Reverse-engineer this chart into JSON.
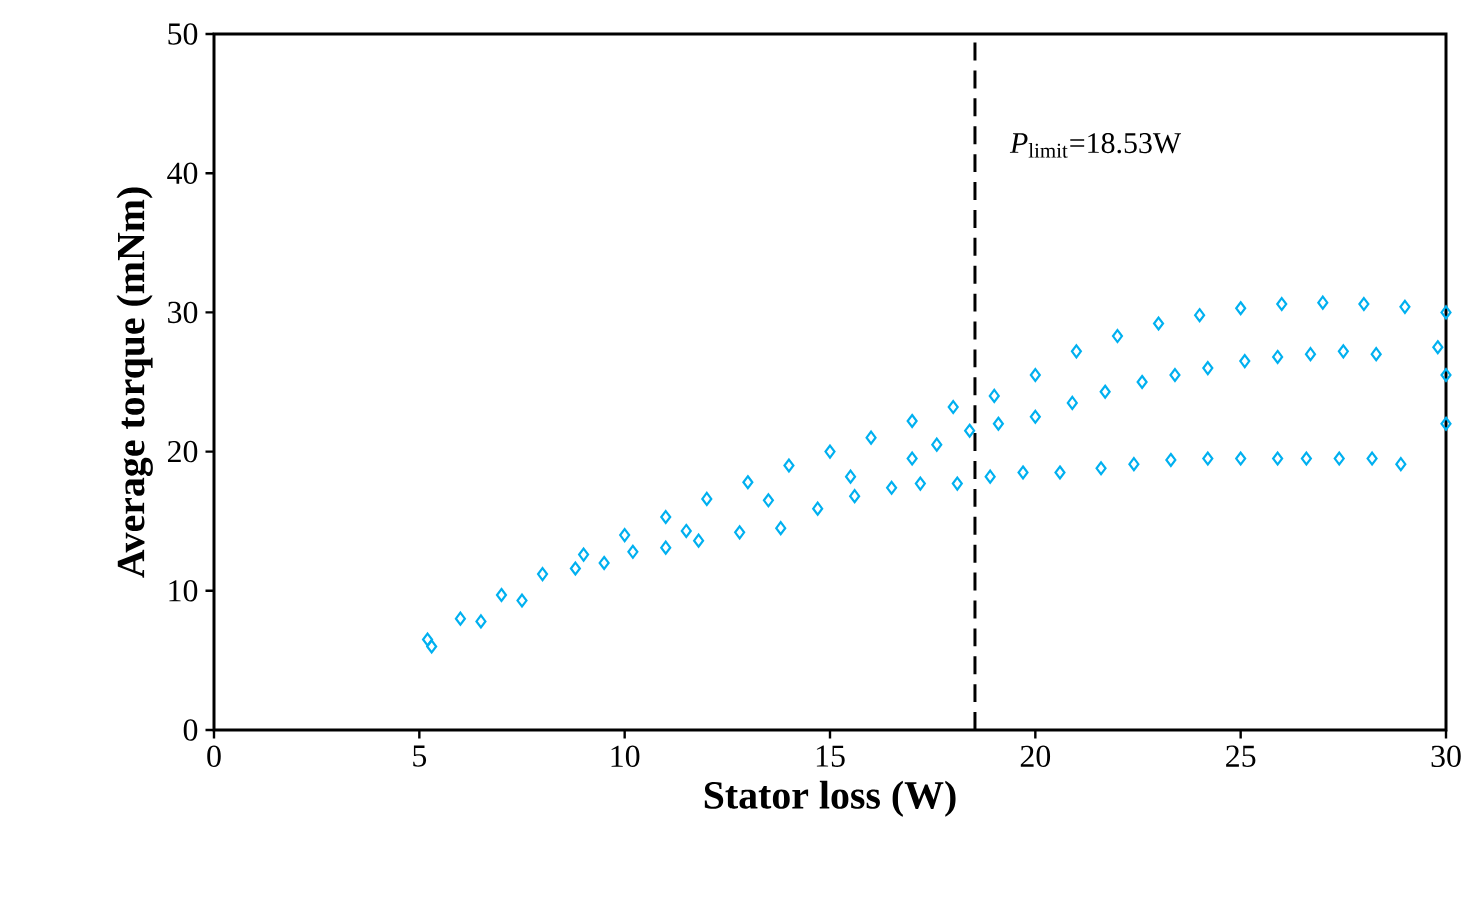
{
  "chart_data": {
    "type": "scatter",
    "xlabel": "Stator loss (W)",
    "ylabel": "Average torque (mNm)",
    "xlim": [
      0,
      30
    ],
    "ylim": [
      0,
      50
    ],
    "xticks": [
      0,
      5,
      10,
      15,
      20,
      25,
      30
    ],
    "yticks": [
      0,
      10,
      20,
      30,
      40,
      50
    ],
    "marker": "diamond",
    "grid": false,
    "ref_lines": [
      {
        "axis": "x",
        "value": 18.53,
        "label": "*P*$_{limit}$=18.53W",
        "line_style": "dashed",
        "color": "#000000"
      }
    ],
    "series": [
      {
        "color": "#00b0f0",
        "x": [
          5.2,
          5.3,
          6,
          7,
          8,
          9,
          10,
          11,
          12,
          13,
          14,
          15,
          16,
          17,
          18,
          19,
          20,
          21,
          22,
          23,
          24,
          25,
          26,
          27,
          28,
          29,
          30,
          6.5,
          7.5,
          8.8,
          10.2,
          11.0,
          11.8,
          12.8,
          13.8,
          14.7,
          15.6,
          16.5,
          17.2,
          18.1,
          18.9,
          19.7,
          20.6,
          21.6,
          22.4,
          23.3,
          24.2,
          25.0,
          25.9,
          26.6,
          27.4,
          28.2,
          28.9,
          30,
          30,
          17.6,
          18.4,
          19.1,
          20,
          20.9,
          21.7,
          22.6,
          23.4,
          24.2,
          25.1,
          25.9,
          26.7,
          27.5,
          28.3,
          29.8,
          9.5,
          11.5,
          13.5,
          15.5,
          17
        ],
        "values": [
          6.5,
          6.0,
          8,
          9.7,
          11.2,
          12.6,
          14,
          15.3,
          16.6,
          17.8,
          19,
          20,
          21,
          22.2,
          23.2,
          24,
          25.5,
          27.2,
          28.3,
          29.2,
          29.8,
          30.3,
          30.6,
          30.7,
          30.6,
          30.4,
          30,
          7.8,
          9.3,
          11.6,
          12.8,
          13.1,
          13.6,
          14.2,
          14.5,
          15.9,
          16.8,
          17.4,
          17.7,
          17.7,
          18.2,
          18.5,
          18.5,
          18.8,
          19.1,
          19.4,
          19.5,
          19.5,
          19.5,
          19.5,
          19.5,
          19.5,
          19.1,
          22,
          25.5,
          20.5,
          21.5,
          22,
          22.5,
          23.5,
          24.3,
          25,
          25.5,
          26,
          26.5,
          26.8,
          27,
          27.2,
          27,
          27.5,
          12,
          14.3,
          16.5,
          18.2,
          19.5
        ]
      }
    ]
  }
}
